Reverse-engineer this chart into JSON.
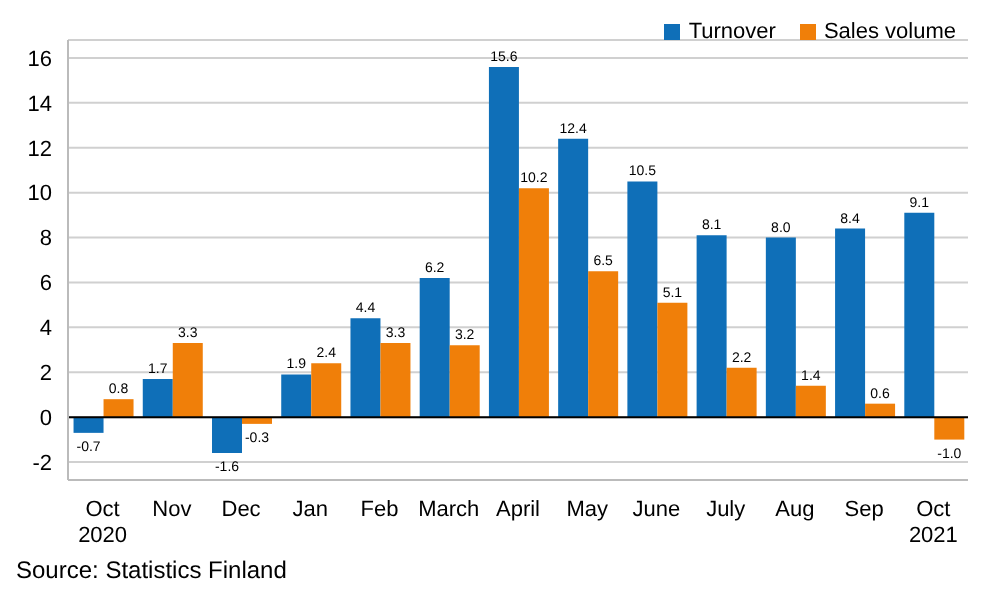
{
  "chart_data": {
    "type": "bar",
    "categories": [
      "Oct 2020",
      "Nov",
      "Dec",
      "Jan",
      "Feb",
      "March",
      "April",
      "May",
      "June",
      "July",
      "Aug",
      "Sep",
      "Oct 2021"
    ],
    "series": [
      {
        "name": "Turnover",
        "color": "#0f6fb8",
        "values": [
          -0.7,
          1.7,
          -1.6,
          1.9,
          4.4,
          6.2,
          15.6,
          12.4,
          10.5,
          8.1,
          8.0,
          8.4,
          9.1
        ],
        "value_labels": [
          "-0.7",
          "1.7",
          "-1.6",
          "1.9",
          "4.4",
          "6.2",
          "15.6",
          "12.4",
          "10.5",
          "8.1",
          "8.0",
          "8.4",
          "9.1"
        ]
      },
      {
        "name": "Sales volume",
        "color": "#f07f09",
        "values": [
          0.8,
          3.3,
          -0.3,
          2.4,
          3.3,
          3.2,
          10.2,
          6.5,
          5.1,
          2.2,
          1.4,
          0.6,
          -1.0
        ],
        "value_labels": [
          "0.8",
          "3.3",
          "-0.3",
          "2.4",
          "3.3",
          "3.2",
          "10.2",
          "6.5",
          "5.1",
          "2.2",
          "1.4",
          "0.6",
          "-1.0"
        ]
      }
    ],
    "ylim": [
      -2.8,
      16.8
    ],
    "yticks": [
      -2,
      0,
      2,
      4,
      6,
      8,
      10,
      12,
      14,
      16
    ],
    "grid": "y",
    "legend": "top right",
    "annotations": [
      "Source: Statistics Finland"
    ]
  }
}
